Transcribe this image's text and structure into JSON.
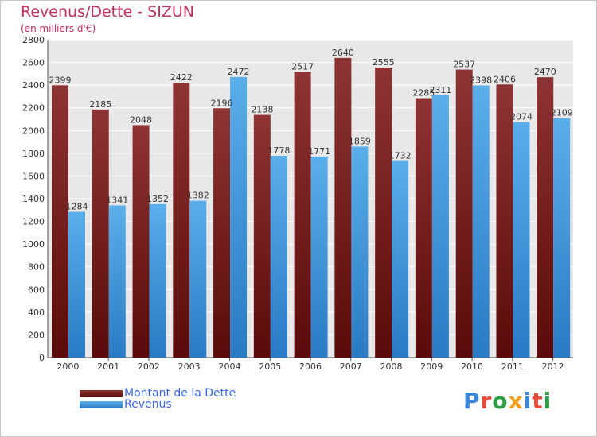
{
  "header": {
    "title": "Revenus/Dette - SIZUN",
    "subtitle": "(en milliers d'€)"
  },
  "logo": {
    "text": "Proxiti",
    "letters": [
      "P",
      "r",
      "o",
      "x",
      "i",
      "t",
      "i"
    ],
    "colors": [
      "#3b86d6",
      "#e64b3c",
      "#2e9e45",
      "#f0a020",
      "#3b86d6",
      "#e64b3c",
      "#2e9e45"
    ]
  },
  "chart_data": {
    "type": "bar",
    "title": "Revenus/Dette - SIZUN",
    "subtitle": "(en milliers d'€)",
    "xlabel": "",
    "ylabel": "",
    "ylim": [
      0,
      2800
    ],
    "yticks": [
      0,
      200,
      400,
      600,
      800,
      1000,
      1200,
      1400,
      1600,
      1800,
      2000,
      2200,
      2400,
      2600,
      2800
    ],
    "grid": true,
    "legend_position": "bottom-left",
    "categories": [
      "2000",
      "2001",
      "2002",
      "2003",
      "2004",
      "2005",
      "2006",
      "2007",
      "2008",
      "2009",
      "2010",
      "2011",
      "2012"
    ],
    "series": [
      {
        "name": "Montant de la Dette",
        "color_light": "#8e3434",
        "color_dark": "#5a0a0a",
        "values": [
          2399,
          2185,
          2048,
          2422,
          2196,
          2138,
          2517,
          2640,
          2555,
          2285,
          2537,
          2406,
          2470
        ]
      },
      {
        "name": "Revenus",
        "color_light": "#5aaeea",
        "color_dark": "#2a7ac4",
        "values": [
          1284,
          1341,
          1352,
          1382,
          2472,
          1778,
          1771,
          1859,
          1732,
          2311,
          2398,
          2074,
          2109
        ]
      }
    ]
  }
}
